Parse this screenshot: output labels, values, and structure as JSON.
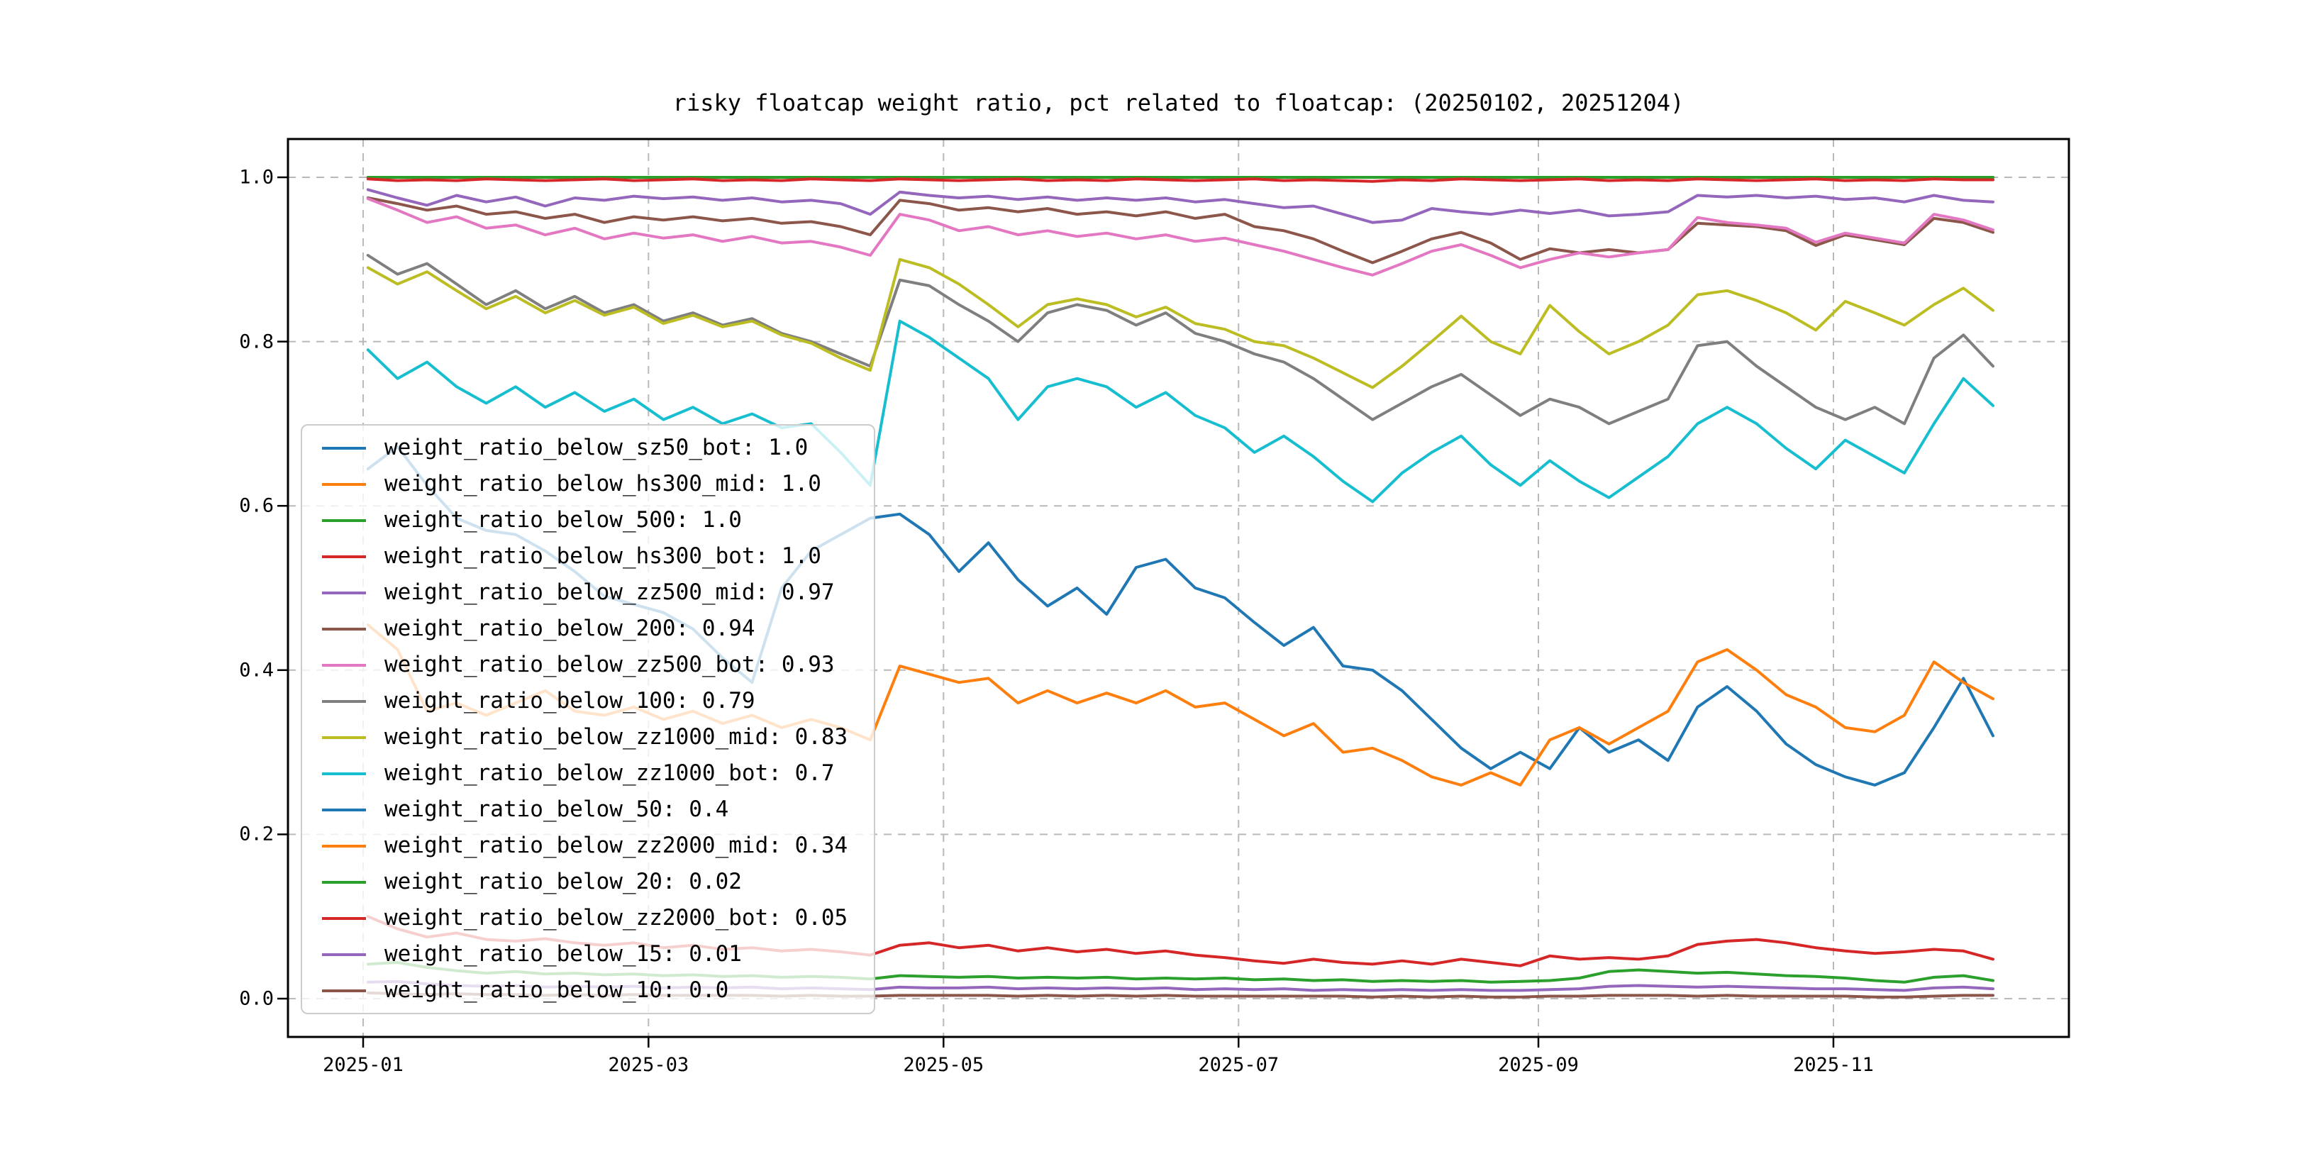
{
  "figure": {
    "title": "risky floatcap weight ratio, pct related to floatcap: (20250102, 20251204)",
    "background_color": "#ffffff"
  },
  "axes": {
    "x_ticks": [
      {
        "label": "2025-01",
        "day": 1
      },
      {
        "label": "2025-03",
        "day": 60
      },
      {
        "label": "2025-05",
        "day": 121
      },
      {
        "label": "2025-07",
        "day": 182
      },
      {
        "label": "2025-09",
        "day": 244
      },
      {
        "label": "2025-11",
        "day": 305
      }
    ],
    "y_ticks": [
      {
        "label": "1.0",
        "value": 1.0
      },
      {
        "label": "0.8",
        "value": 0.8
      },
      {
        "label": "0.6",
        "value": 0.6
      },
      {
        "label": "0.4",
        "value": 0.4
      },
      {
        "label": "0.2",
        "value": 0.2
      },
      {
        "label": "0.0",
        "value": 0.0
      }
    ],
    "grid": "dashed"
  },
  "chart_data": {
    "type": "line",
    "title": "risky floatcap weight ratio, pct related to floatcap: (20250102, 20251204)",
    "xlabel": "",
    "ylabel": "",
    "x_range_days": [
      2,
      338
    ],
    "ylim": [
      -0.047,
      1.047
    ],
    "legend_position": "center-left",
    "series": [
      {
        "name": "weight_ratio_below_sz50_bot",
        "legend_label": "weight_ratio_below_sz50_bot: 1.0",
        "color": "#1f77b4",
        "values": [
          1.0,
          1.0,
          1.0,
          1.0,
          1.0,
          1.0,
          1.0,
          1.0,
          1.0,
          1.0,
          1.0,
          1.0,
          1.0,
          1.0,
          1.0,
          1.0,
          1.0,
          1.0,
          1.0,
          1.0,
          1.0,
          1.0,
          1.0,
          1.0,
          1.0,
          1.0,
          1.0,
          1.0,
          1.0,
          1.0,
          1.0,
          1.0,
          1.0,
          1.0,
          1.0,
          1.0,
          1.0,
          1.0,
          1.0,
          1.0,
          1.0,
          1.0,
          1.0,
          1.0,
          1.0,
          1.0,
          1.0,
          1.0,
          1.0,
          1.0,
          1.0,
          1.0,
          1.0,
          1.0,
          1.0,
          1.0
        ]
      },
      {
        "name": "weight_ratio_below_hs300_mid",
        "legend_label": "weight_ratio_below_hs300_mid: 1.0",
        "color": "#ff7f0e",
        "values": [
          1.0,
          1.0,
          1.0,
          1.0,
          1.0,
          1.0,
          1.0,
          1.0,
          1.0,
          1.0,
          1.0,
          1.0,
          1.0,
          1.0,
          1.0,
          1.0,
          1.0,
          1.0,
          1.0,
          1.0,
          1.0,
          1.0,
          1.0,
          1.0,
          1.0,
          1.0,
          1.0,
          1.0,
          1.0,
          1.0,
          1.0,
          1.0,
          1.0,
          1.0,
          1.0,
          1.0,
          1.0,
          1.0,
          1.0,
          1.0,
          1.0,
          1.0,
          1.0,
          1.0,
          1.0,
          1.0,
          1.0,
          1.0,
          1.0,
          1.0,
          1.0,
          1.0,
          1.0,
          1.0,
          1.0,
          1.0
        ]
      },
      {
        "name": "weight_ratio_below_500",
        "legend_label": "weight_ratio_below_500: 1.0",
        "color": "#2ca02c",
        "values": [
          1.0,
          1.0,
          1.0,
          1.0,
          1.0,
          1.0,
          1.0,
          1.0,
          1.0,
          1.0,
          1.0,
          1.0,
          1.0,
          1.0,
          1.0,
          1.0,
          1.0,
          1.0,
          1.0,
          1.0,
          1.0,
          1.0,
          1.0,
          1.0,
          1.0,
          1.0,
          1.0,
          1.0,
          1.0,
          1.0,
          1.0,
          1.0,
          1.0,
          1.0,
          1.0,
          1.0,
          1.0,
          1.0,
          1.0,
          1.0,
          1.0,
          1.0,
          1.0,
          1.0,
          1.0,
          1.0,
          1.0,
          1.0,
          1.0,
          1.0,
          1.0,
          1.0,
          1.0,
          1.0,
          1.0,
          1.0
        ]
      },
      {
        "name": "weight_ratio_below_hs300_bot",
        "legend_label": "weight_ratio_below_hs300_bot: 1.0",
        "color": "#d62728",
        "values": [
          0.998,
          0.996,
          0.997,
          0.996,
          0.998,
          0.997,
          0.996,
          0.997,
          0.998,
          0.996,
          0.997,
          0.998,
          0.996,
          0.997,
          0.996,
          0.998,
          0.997,
          0.996,
          0.998,
          0.997,
          0.996,
          0.997,
          0.998,
          0.996,
          0.997,
          0.996,
          0.998,
          0.997,
          0.996,
          0.997,
          0.998,
          0.996,
          0.997,
          0.996,
          0.995,
          0.997,
          0.996,
          0.998,
          0.997,
          0.996,
          0.997,
          0.998,
          0.996,
          0.997,
          0.996,
          0.998,
          0.997,
          0.996,
          0.997,
          0.998,
          0.996,
          0.997,
          0.996,
          0.998,
          0.997,
          0.997
        ]
      },
      {
        "name": "weight_ratio_below_zz500_mid",
        "legend_label": "weight_ratio_below_zz500_mid: 0.97",
        "color": "#9467bd",
        "values": [
          0.985,
          0.975,
          0.966,
          0.978,
          0.97,
          0.976,
          0.965,
          0.975,
          0.972,
          0.977,
          0.974,
          0.976,
          0.972,
          0.975,
          0.97,
          0.972,
          0.968,
          0.955,
          0.982,
          0.978,
          0.975,
          0.977,
          0.973,
          0.976,
          0.972,
          0.975,
          0.972,
          0.975,
          0.97,
          0.973,
          0.968,
          0.963,
          0.965,
          0.955,
          0.945,
          0.948,
          0.962,
          0.958,
          0.955,
          0.96,
          0.956,
          0.96,
          0.953,
          0.955,
          0.958,
          0.978,
          0.976,
          0.978,
          0.975,
          0.977,
          0.973,
          0.975,
          0.97,
          0.978,
          0.972,
          0.97
        ]
      },
      {
        "name": "weight_ratio_below_200",
        "legend_label": "weight_ratio_below_200: 0.94",
        "color": "#8c564b",
        "values": [
          0.975,
          0.968,
          0.96,
          0.965,
          0.955,
          0.958,
          0.95,
          0.955,
          0.945,
          0.952,
          0.948,
          0.952,
          0.947,
          0.95,
          0.944,
          0.946,
          0.94,
          0.93,
          0.972,
          0.968,
          0.96,
          0.963,
          0.958,
          0.962,
          0.955,
          0.958,
          0.953,
          0.958,
          0.95,
          0.955,
          0.94,
          0.935,
          0.925,
          0.91,
          0.896,
          0.91,
          0.925,
          0.933,
          0.92,
          0.9,
          0.913,
          0.908,
          0.912,
          0.908,
          0.912,
          0.944,
          0.942,
          0.94,
          0.935,
          0.917,
          0.93,
          0.924,
          0.918,
          0.95,
          0.945,
          0.933
        ]
      },
      {
        "name": "weight_ratio_below_zz500_bot",
        "legend_label": "weight_ratio_below_zz500_bot: 0.93",
        "color": "#e377c2",
        "values": [
          0.974,
          0.96,
          0.945,
          0.952,
          0.938,
          0.942,
          0.93,
          0.938,
          0.925,
          0.932,
          0.926,
          0.93,
          0.922,
          0.928,
          0.92,
          0.922,
          0.915,
          0.905,
          0.955,
          0.948,
          0.935,
          0.94,
          0.93,
          0.935,
          0.928,
          0.932,
          0.925,
          0.93,
          0.922,
          0.926,
          0.918,
          0.91,
          0.9,
          0.89,
          0.881,
          0.895,
          0.91,
          0.918,
          0.905,
          0.89,
          0.9,
          0.908,
          0.903,
          0.908,
          0.912,
          0.951,
          0.945,
          0.942,
          0.938,
          0.921,
          0.932,
          0.926,
          0.92,
          0.955,
          0.948,
          0.936
        ]
      },
      {
        "name": "weight_ratio_below_100",
        "legend_label": "weight_ratio_below_100: 0.79",
        "color": "#7f7f7f",
        "values": [
          0.905,
          0.882,
          0.895,
          0.87,
          0.845,
          0.862,
          0.84,
          0.855,
          0.835,
          0.845,
          0.825,
          0.835,
          0.82,
          0.828,
          0.81,
          0.8,
          0.785,
          0.77,
          0.875,
          0.868,
          0.845,
          0.825,
          0.8,
          0.835,
          0.845,
          0.838,
          0.82,
          0.835,
          0.81,
          0.8,
          0.785,
          0.775,
          0.755,
          0.73,
          0.705,
          0.725,
          0.745,
          0.76,
          0.735,
          0.71,
          0.73,
          0.72,
          0.7,
          0.715,
          0.73,
          0.795,
          0.8,
          0.77,
          0.745,
          0.72,
          0.705,
          0.72,
          0.7,
          0.78,
          0.808,
          0.77
        ]
      },
      {
        "name": "weight_ratio_below_zz1000_mid",
        "legend_label": "weight_ratio_below_zz1000_mid: 0.83",
        "color": "#bcbd22",
        "values": [
          0.89,
          0.87,
          0.885,
          0.862,
          0.84,
          0.855,
          0.835,
          0.85,
          0.832,
          0.842,
          0.822,
          0.832,
          0.818,
          0.825,
          0.808,
          0.798,
          0.78,
          0.765,
          0.9,
          0.89,
          0.87,
          0.845,
          0.818,
          0.845,
          0.852,
          0.845,
          0.83,
          0.842,
          0.822,
          0.815,
          0.8,
          0.795,
          0.78,
          0.762,
          0.744,
          0.77,
          0.8,
          0.831,
          0.8,
          0.785,
          0.844,
          0.812,
          0.785,
          0.8,
          0.82,
          0.857,
          0.862,
          0.85,
          0.835,
          0.814,
          0.849,
          0.835,
          0.82,
          0.845,
          0.865,
          0.838
        ]
      },
      {
        "name": "weight_ratio_below_zz1000_bot",
        "legend_label": "weight_ratio_below_zz1000_bot: 0.7",
        "color": "#17becf",
        "values": [
          0.79,
          0.755,
          0.775,
          0.745,
          0.725,
          0.745,
          0.72,
          0.738,
          0.715,
          0.73,
          0.705,
          0.72,
          0.7,
          0.712,
          0.695,
          0.7,
          0.665,
          0.625,
          0.825,
          0.805,
          0.78,
          0.755,
          0.705,
          0.745,
          0.755,
          0.745,
          0.72,
          0.738,
          0.71,
          0.695,
          0.665,
          0.685,
          0.66,
          0.63,
          0.605,
          0.64,
          0.665,
          0.685,
          0.65,
          0.625,
          0.655,
          0.63,
          0.61,
          0.635,
          0.66,
          0.7,
          0.72,
          0.7,
          0.67,
          0.645,
          0.68,
          0.66,
          0.64,
          0.7,
          0.755,
          0.722
        ]
      },
      {
        "name": "weight_ratio_below_50",
        "legend_label": "weight_ratio_below_50: 0.4",
        "color": "#1f77b4",
        "values": [
          0.645,
          0.672,
          0.625,
          0.585,
          0.57,
          0.565,
          0.545,
          0.52,
          0.49,
          0.48,
          0.47,
          0.45,
          0.415,
          0.385,
          0.5,
          0.545,
          0.565,
          0.585,
          0.59,
          0.565,
          0.52,
          0.555,
          0.51,
          0.478,
          0.5,
          0.468,
          0.525,
          0.535,
          0.5,
          0.488,
          0.458,
          0.43,
          0.452,
          0.405,
          0.4,
          0.375,
          0.34,
          0.305,
          0.28,
          0.3,
          0.28,
          0.33,
          0.3,
          0.315,
          0.29,
          0.355,
          0.38,
          0.35,
          0.31,
          0.285,
          0.27,
          0.26,
          0.275,
          0.33,
          0.39,
          0.32
        ]
      },
      {
        "name": "weight_ratio_below_zz2000_mid",
        "legend_label": "weight_ratio_below_zz2000_mid: 0.34",
        "color": "#ff7f0e",
        "values": [
          0.455,
          0.425,
          0.35,
          0.36,
          0.345,
          0.36,
          0.375,
          0.35,
          0.345,
          0.355,
          0.34,
          0.35,
          0.335,
          0.345,
          0.33,
          0.34,
          0.33,
          0.315,
          0.405,
          0.395,
          0.385,
          0.39,
          0.36,
          0.375,
          0.36,
          0.372,
          0.36,
          0.375,
          0.355,
          0.36,
          0.34,
          0.32,
          0.335,
          0.3,
          0.305,
          0.29,
          0.27,
          0.26,
          0.275,
          0.26,
          0.315,
          0.33,
          0.31,
          0.33,
          0.35,
          0.41,
          0.425,
          0.4,
          0.37,
          0.355,
          0.33,
          0.325,
          0.345,
          0.41,
          0.385,
          0.365
        ]
      },
      {
        "name": "weight_ratio_below_20",
        "legend_label": "weight_ratio_below_20: 0.02",
        "color": "#2ca02c",
        "values": [
          0.042,
          0.044,
          0.038,
          0.034,
          0.031,
          0.033,
          0.03,
          0.031,
          0.029,
          0.03,
          0.028,
          0.029,
          0.027,
          0.028,
          0.026,
          0.027,
          0.026,
          0.024,
          0.028,
          0.027,
          0.026,
          0.027,
          0.025,
          0.026,
          0.025,
          0.026,
          0.024,
          0.025,
          0.024,
          0.025,
          0.023,
          0.024,
          0.022,
          0.023,
          0.021,
          0.022,
          0.021,
          0.022,
          0.02,
          0.021,
          0.022,
          0.025,
          0.033,
          0.035,
          0.033,
          0.031,
          0.032,
          0.03,
          0.028,
          0.027,
          0.025,
          0.022,
          0.02,
          0.026,
          0.028,
          0.022
        ]
      },
      {
        "name": "weight_ratio_below_zz2000_bot",
        "legend_label": "weight_ratio_below_zz2000_bot: 0.05",
        "color": "#d62728",
        "values": [
          0.1,
          0.085,
          0.075,
          0.08,
          0.072,
          0.07,
          0.073,
          0.068,
          0.065,
          0.068,
          0.062,
          0.065,
          0.06,
          0.062,
          0.058,
          0.06,
          0.057,
          0.053,
          0.065,
          0.068,
          0.062,
          0.065,
          0.058,
          0.062,
          0.057,
          0.06,
          0.055,
          0.058,
          0.053,
          0.05,
          0.046,
          0.043,
          0.048,
          0.044,
          0.042,
          0.046,
          0.042,
          0.048,
          0.044,
          0.04,
          0.052,
          0.048,
          0.05,
          0.048,
          0.052,
          0.066,
          0.07,
          0.072,
          0.068,
          0.062,
          0.058,
          0.055,
          0.057,
          0.06,
          0.058,
          0.048
        ]
      },
      {
        "name": "weight_ratio_below_15",
        "legend_label": "weight_ratio_below_15: 0.01",
        "color": "#9467bd",
        "values": [
          0.02,
          0.021,
          0.018,
          0.016,
          0.015,
          0.016,
          0.014,
          0.015,
          0.014,
          0.015,
          0.013,
          0.014,
          0.013,
          0.014,
          0.012,
          0.013,
          0.012,
          0.011,
          0.014,
          0.013,
          0.013,
          0.014,
          0.012,
          0.013,
          0.012,
          0.013,
          0.012,
          0.013,
          0.011,
          0.012,
          0.011,
          0.012,
          0.01,
          0.011,
          0.01,
          0.011,
          0.01,
          0.011,
          0.01,
          0.01,
          0.011,
          0.012,
          0.015,
          0.016,
          0.015,
          0.014,
          0.015,
          0.014,
          0.013,
          0.012,
          0.012,
          0.011,
          0.01,
          0.013,
          0.014,
          0.012
        ]
      },
      {
        "name": "weight_ratio_below_10",
        "legend_label": "weight_ratio_below_10: 0.0",
        "color": "#8c564b",
        "values": [
          0.007,
          0.006,
          0.005,
          0.006,
          0.005,
          0.005,
          0.004,
          0.005,
          0.004,
          0.005,
          0.004,
          0.004,
          0.004,
          0.004,
          0.003,
          0.004,
          0.003,
          0.003,
          0.004,
          0.004,
          0.004,
          0.004,
          0.003,
          0.004,
          0.003,
          0.004,
          0.003,
          0.004,
          0.003,
          0.003,
          0.003,
          0.003,
          0.003,
          0.003,
          0.002,
          0.003,
          0.002,
          0.003,
          0.002,
          0.002,
          0.003,
          0.003,
          0.004,
          0.004,
          0.004,
          0.003,
          0.004,
          0.003,
          0.003,
          0.003,
          0.003,
          0.002,
          0.002,
          0.003,
          0.004,
          0.004
        ]
      }
    ]
  }
}
